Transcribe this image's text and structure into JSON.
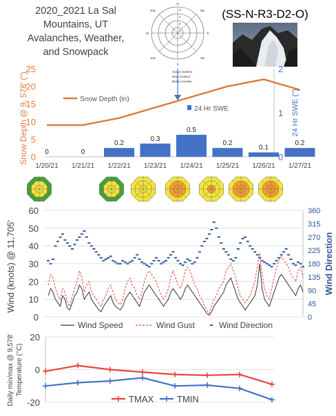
{
  "header": {
    "title_lines": [
      "2020_2021 La Sal",
      "Mountains, UT",
      "Avalanches, Weather,",
      "and Snowpack"
    ],
    "avalanche_id": "(SS-N-R3-D2-O)"
  },
  "rose": {
    "directions": [
      "N",
      "NE",
      "E",
      "SE",
      "S",
      "SW",
      "W",
      "NW"
    ],
    "ring_labels": [
      "1",
      "2",
      "3",
      "4"
    ],
    "elevation_legend": [
      "Above treeline",
      "Near treeline",
      "Below treeline"
    ]
  },
  "colors": {
    "snow_depth": "#e07b39",
    "swe": "#4472c4",
    "wind_speed": "#333333",
    "wind_gust": "#e8443a",
    "wind_dir": "#2f5597",
    "tmax": "#e8443a",
    "tmin": "#4472c4",
    "danger_low": "#4a9e3a",
    "danger_moderate": "#f2e33a",
    "danger_considerable": "#f39c2a"
  },
  "danger_roses": [
    {
      "date": "1/20/21",
      "outer": "low",
      "middle": "moderate",
      "inner": "moderate"
    },
    {
      "date": "1/22/21",
      "outer": "low",
      "middle": "moderate",
      "inner": "moderate"
    },
    {
      "date": "1/23/21",
      "outer": "moderate",
      "middle": "moderate",
      "inner": "moderate"
    },
    {
      "date": "1/24/21",
      "outer": "moderate",
      "middle": "considerable",
      "inner": "considerable"
    },
    {
      "date": "1/25/21",
      "outer": "moderate",
      "middle": "moderate",
      "inner": "considerable"
    },
    {
      "date": "1/26/21",
      "outer": "moderate",
      "middle": "considerable",
      "inner": "considerable"
    },
    {
      "date": "1/27/21",
      "outer": "moderate",
      "middle": "considerable",
      "inner": "considerable"
    }
  ],
  "chart_data": [
    {
      "type": "bar",
      "title": "",
      "categories": [
        "1/20/21",
        "1/21/21",
        "1/22/21",
        "1/23/21",
        "1/24/21",
        "1/25/21",
        "1/26/21",
        "1/27/21"
      ],
      "series": [
        {
          "name": "Snow Depth (in)",
          "kind": "line",
          "axis": "left",
          "values": [
            9,
            9,
            11,
            14,
            17,
            20,
            22,
            19
          ]
        },
        {
          "name": "24 Hr SWE",
          "kind": "bar",
          "axis": "right",
          "values": [
            0,
            0,
            0.2,
            0.3,
            0.5,
            0.2,
            0.1,
            0.2
          ]
        }
      ],
      "ylabel": "Snow Depth @ 9, 578' (\")",
      "ylim": [
        0,
        25
      ],
      "yticks": [
        "0",
        "5",
        "10",
        "15",
        "20",
        "25"
      ],
      "y2label": "24 Hr SWE (\")",
      "y2lim": [
        0,
        2
      ],
      "y2ticks": [
        "0",
        "1",
        "2"
      ]
    },
    {
      "type": "line",
      "title": "",
      "series": [
        {
          "name": "Wind Speed",
          "axis": "left",
          "values": [
            12,
            16,
            14,
            10,
            8,
            6,
            12,
            10,
            5,
            4,
            8,
            12,
            14,
            18,
            16,
            10,
            12,
            14,
            10,
            8,
            6,
            4,
            3,
            6,
            8,
            10,
            12,
            8,
            6,
            5,
            4,
            6,
            10,
            12,
            14,
            12,
            10,
            8,
            6,
            10,
            14,
            16,
            18,
            16,
            14,
            12,
            10,
            8,
            6,
            8,
            10,
            14,
            16,
            14,
            12,
            10,
            12,
            16,
            18,
            16,
            14,
            12,
            10,
            8,
            6,
            4,
            2,
            1,
            3,
            6,
            8,
            10,
            12,
            14,
            18,
            20,
            22,
            18,
            14,
            10,
            8,
            6,
            4,
            6,
            8,
            10,
            12,
            18,
            30,
            16,
            10,
            8,
            6,
            10,
            14,
            18,
            22,
            24,
            22,
            20,
            18,
            16,
            14,
            12,
            16,
            18,
            14
          ]
        },
        {
          "name": "Wind Gust",
          "axis": "left",
          "values": [
            18,
            24,
            22,
            16,
            12,
            10,
            16,
            14,
            8,
            6,
            12,
            16,
            20,
            26,
            22,
            14,
            18,
            20,
            14,
            12,
            10,
            8,
            6,
            10,
            12,
            16,
            18,
            14,
            10,
            8,
            7,
            10,
            16,
            20,
            22,
            18,
            16,
            12,
            10,
            14,
            20,
            24,
            26,
            24,
            22,
            20,
            16,
            12,
            10,
            12,
            16,
            22,
            26,
            22,
            18,
            16,
            20,
            26,
            28,
            26,
            22,
            18,
            16,
            12,
            10,
            6,
            4,
            2,
            6,
            10,
            12,
            16,
            18,
            20,
            26,
            28,
            30,
            26,
            22,
            16,
            12,
            10,
            8,
            10,
            12,
            16,
            20,
            28,
            36,
            24,
            16,
            12,
            10,
            16,
            22,
            28,
            32,
            34,
            32,
            30,
            28,
            24,
            22,
            20,
            26,
            28,
            22
          ]
        },
        {
          "name": "Wind Direction",
          "axis": "right",
          "values": [
            190,
            180,
            195,
            240,
            255,
            270,
            280,
            260,
            250,
            240,
            230,
            245,
            260,
            270,
            280,
            290,
            270,
            250,
            240,
            230,
            220,
            210,
            200,
            190,
            195,
            200,
            205,
            190,
            185,
            180,
            180,
            190,
            185,
            180,
            185,
            190,
            200,
            210,
            195,
            185,
            180,
            175,
            170,
            180,
            190,
            200,
            190,
            180,
            185,
            190,
            200,
            210,
            220,
            200,
            190,
            180,
            175,
            185,
            195,
            190,
            180,
            185,
            200,
            220,
            240,
            255,
            265,
            280,
            295,
            320,
            300,
            270,
            250,
            230,
            220,
            210,
            195,
            190,
            200,
            230,
            250,
            265,
            270,
            255,
            240,
            230,
            220,
            210,
            200,
            190,
            185,
            180,
            175,
            170,
            180,
            190,
            200,
            210,
            220,
            230,
            210,
            195,
            180,
            175,
            185,
            180,
            170
          ]
        }
      ],
      "ylabel": "Wind (knots) @ 11,705'",
      "ylim": [
        0,
        60
      ],
      "yticks": [
        "0",
        "10",
        "20",
        "30",
        "40",
        "50",
        "60"
      ],
      "y2label": "Wind Direction",
      "y2lim": [
        0,
        360
      ],
      "y2ticks": [
        "0",
        "45",
        "90",
        "135",
        "180",
        "225",
        "270",
        "315",
        "360"
      ]
    },
    {
      "type": "line",
      "title": "",
      "categories": [
        "1/20/21",
        "1/21/21",
        "1/22/21",
        "1/23/21",
        "1/24/21",
        "1/25/21",
        "1/26/21",
        "1/27/21"
      ],
      "series": [
        {
          "name": "TMAX",
          "values": [
            -1,
            2.5,
            0,
            -1.5,
            -3,
            -3.5,
            -3,
            -9
          ]
        },
        {
          "name": "TMIN",
          "values": [
            -10,
            -8,
            -7,
            -5,
            -10,
            -9.5,
            -11.5,
            -18.5
          ]
        }
      ],
      "ylabel_lines": [
        "Daily min/max @ 9,578'",
        "Temperature (°C)"
      ],
      "ylim": [
        -20,
        20
      ],
      "yticks": [
        "20",
        "0",
        "-20"
      ]
    }
  ]
}
